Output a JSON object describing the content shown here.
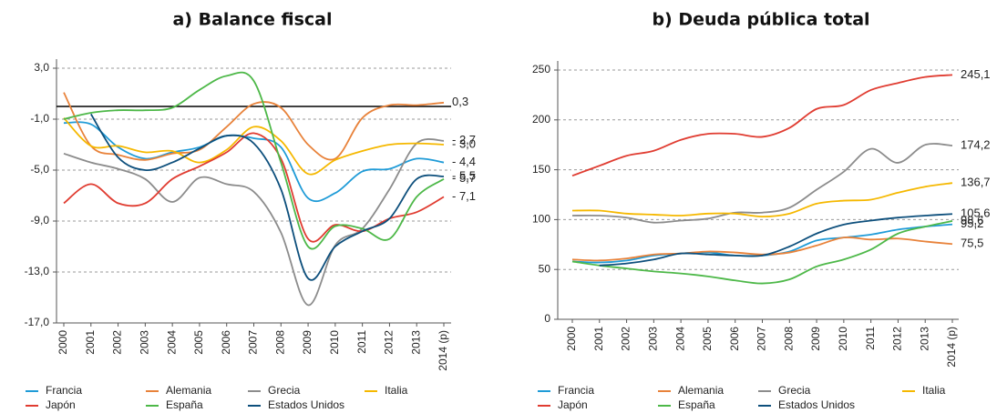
{
  "chart_data": [
    {
      "type": "line",
      "title": "a) Balance fiscal",
      "categories": [
        "2000",
        "2001",
        "2002",
        "2003",
        "2004",
        "2005",
        "2006",
        "2007",
        "2008",
        "2009",
        "2010",
        "2011",
        "2012",
        "2013",
        "2014 (p)"
      ],
      "ylim": [
        -17,
        3
      ],
      "yticks": [
        {
          "value": 3,
          "label": "3,0"
        },
        {
          "value": -1,
          "label": "-1,0"
        },
        {
          "value": -5,
          "label": "-5,0"
        },
        {
          "value": -9,
          "label": "-9,0"
        },
        {
          "value": -13,
          "label": "-13,0"
        },
        {
          "value": -17,
          "label": "-17,0"
        }
      ],
      "grid": true,
      "series": [
        {
          "name": "Francia",
          "color": "#1f9bd7",
          "values": [
            -1.3,
            -1.4,
            -3.2,
            -4.1,
            -3.6,
            -3.2,
            -2.3,
            -2.5,
            -3.2,
            -7.2,
            -6.8,
            -5.1,
            -4.9,
            -4.1,
            -4.4
          ],
          "value_labels": [
            null,
            null,
            null,
            null,
            null,
            null,
            null,
            null,
            null,
            null,
            null,
            null,
            null,
            null,
            "- 4,4"
          ]
        },
        {
          "name": "Alemania",
          "color": "#e8823a",
          "values": [
            1.1,
            -3.1,
            -3.8,
            -4.2,
            -3.7,
            -3.4,
            -1.6,
            0.2,
            -0.1,
            -3.0,
            -4.1,
            -0.9,
            0.1,
            0.1,
            0.3
          ],
          "value_labels": [
            null,
            null,
            null,
            null,
            null,
            null,
            null,
            null,
            null,
            null,
            null,
            null,
            null,
            null,
            "0,3"
          ]
        },
        {
          "name": "Grecia",
          "color": "#8c8c8c",
          "values": [
            -3.7,
            -4.4,
            -4.9,
            -5.7,
            -7.5,
            -5.6,
            -6.1,
            -6.7,
            -9.9,
            -15.6,
            -10.9,
            -9.6,
            -6.5,
            -2.9,
            -2.7
          ],
          "value_labels": [
            null,
            null,
            null,
            null,
            null,
            null,
            null,
            null,
            null,
            null,
            null,
            null,
            null,
            null,
            "- 2,7"
          ]
        },
        {
          "name": "Italia",
          "color": "#f5b800",
          "values": [
            -0.9,
            -3.1,
            -3.1,
            -3.6,
            -3.5,
            -4.4,
            -3.4,
            -1.6,
            -2.7,
            -5.3,
            -4.2,
            -3.5,
            -3.0,
            -2.9,
            -3.0
          ],
          "value_labels": [
            null,
            null,
            null,
            null,
            null,
            null,
            null,
            null,
            null,
            null,
            null,
            null,
            null,
            null,
            "- 3,0"
          ]
        },
        {
          "name": "Japón",
          "color": "#e03c31",
          "values": [
            -7.6,
            -6.1,
            -7.6,
            -7.6,
            -5.7,
            -4.7,
            -3.6,
            -2.1,
            -4.1,
            -10.4,
            -9.3,
            -9.8,
            -8.8,
            -8.3,
            -7.1
          ],
          "value_labels": [
            null,
            null,
            null,
            null,
            null,
            null,
            null,
            null,
            null,
            null,
            null,
            null,
            null,
            null,
            "- 7,1"
          ]
        },
        {
          "name": "España",
          "color": "#4db848",
          "values": [
            -1.0,
            -0.5,
            -0.3,
            -0.3,
            -0.1,
            1.3,
            2.4,
            2.0,
            -4.4,
            -11.0,
            -9.4,
            -9.6,
            -10.4,
            -7.1,
            -5.7
          ],
          "value_labels": [
            null,
            null,
            null,
            null,
            null,
            null,
            null,
            null,
            null,
            null,
            null,
            null,
            null,
            null,
            "- 5,7"
          ]
        },
        {
          "name": "Estados Unidos",
          "color": "#0d4f7c",
          "values": [
            null,
            -0.6,
            -4.0,
            -5.0,
            -4.4,
            -3.3,
            -2.3,
            -2.9,
            -6.5,
            -13.5,
            -11.0,
            -9.8,
            -8.8,
            -5.7,
            -5.5
          ],
          "value_labels": [
            null,
            null,
            null,
            null,
            null,
            null,
            null,
            null,
            null,
            null,
            null,
            null,
            null,
            null,
            "- 5,5"
          ]
        }
      ]
    },
    {
      "type": "line",
      "title": "b) Deuda pública total",
      "categories": [
        "2000",
        "2001",
        "2002",
        "2003",
        "2004",
        "2005",
        "2006",
        "2007",
        "2008",
        "2009",
        "2010",
        "2011",
        "2012",
        "2013",
        "2014 (p)"
      ],
      "ylim": [
        0,
        250
      ],
      "yticks": [
        0,
        50,
        100,
        150,
        200,
        250
      ],
      "grid": true,
      "series": [
        {
          "name": "Francia",
          "color": "#1f9bd7",
          "values": [
            58,
            57,
            59,
            64,
            66,
            67,
            64,
            64,
            68,
            79,
            82,
            85,
            90,
            93,
            95.2
          ],
          "value_labels": [
            null,
            null,
            null,
            null,
            null,
            null,
            null,
            null,
            null,
            null,
            null,
            null,
            null,
            null,
            "95,2"
          ]
        },
        {
          "name": "Alemania",
          "color": "#e8823a",
          "values": [
            60,
            59,
            61,
            65,
            66,
            68,
            67,
            65,
            67,
            74,
            82,
            80,
            81,
            78,
            75.5
          ],
          "value_labels": [
            null,
            null,
            null,
            null,
            null,
            null,
            null,
            null,
            null,
            null,
            null,
            null,
            null,
            null,
            "75,5"
          ]
        },
        {
          "name": "Grecia",
          "color": "#8c8c8c",
          "values": [
            104,
            104,
            102,
            97,
            99,
            101,
            107,
            107,
            112,
            130,
            148,
            171,
            157,
            175,
            174.2
          ],
          "value_labels": [
            null,
            null,
            null,
            null,
            null,
            null,
            null,
            null,
            null,
            null,
            null,
            null,
            null,
            null,
            "174,2"
          ]
        },
        {
          "name": "Italia",
          "color": "#f5b800",
          "values": [
            109,
            109,
            106,
            105,
            104,
            106,
            106,
            103,
            106,
            116,
            119,
            120,
            127,
            133,
            136.7
          ],
          "value_labels": [
            null,
            null,
            null,
            null,
            null,
            null,
            null,
            null,
            null,
            null,
            null,
            null,
            null,
            null,
            "136,7"
          ]
        },
        {
          "name": "Japón",
          "color": "#e03c31",
          "values": [
            144,
            154,
            164,
            169,
            180,
            186,
            186,
            183,
            192,
            211,
            215,
            230,
            237,
            243,
            245.1
          ],
          "value_labels": [
            null,
            null,
            null,
            null,
            null,
            null,
            null,
            null,
            null,
            null,
            null,
            null,
            null,
            null,
            "245,1"
          ]
        },
        {
          "name": "España",
          "color": "#4db848",
          "values": [
            58,
            54,
            51,
            48,
            46,
            43,
            39,
            36,
            40,
            53,
            60,
            70,
            86,
            93,
            98.6
          ],
          "value_labels": [
            null,
            null,
            null,
            null,
            null,
            null,
            null,
            null,
            null,
            null,
            null,
            null,
            null,
            null,
            "98,6"
          ]
        },
        {
          "name": "Estados Unidos",
          "color": "#0d4f7c",
          "values": [
            null,
            54,
            56,
            60,
            66,
            65,
            64,
            64,
            73,
            86,
            95,
            99,
            102,
            104,
            105.6
          ],
          "value_labels": [
            null,
            null,
            null,
            null,
            null,
            null,
            null,
            null,
            null,
            null,
            null,
            null,
            null,
            null,
            "105,6"
          ]
        }
      ]
    }
  ]
}
